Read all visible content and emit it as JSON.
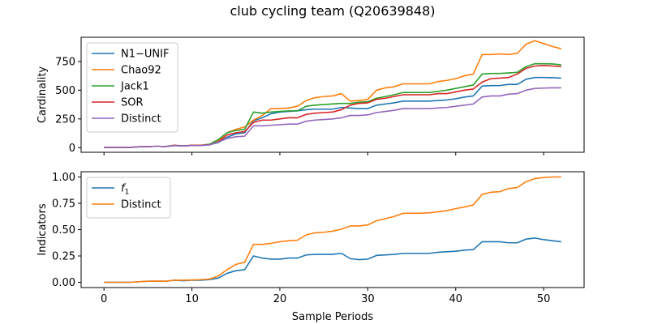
{
  "figure_title": "club cycling team (Q20639848)",
  "chart_data": [
    {
      "type": "line",
      "ylabel": "Cardinality",
      "xlim": [
        -2.6,
        54.6
      ],
      "ylim": [
        -40,
        960
      ],
      "xticks": [
        0,
        10,
        20,
        30,
        40,
        50
      ],
      "yticks": [
        0,
        250,
        500,
        750
      ],
      "ytick_labels": [
        "0",
        "250",
        "500",
        "750"
      ],
      "legend_position": "upper left",
      "x": [
        0,
        1,
        2,
        3,
        4,
        5,
        6,
        7,
        8,
        9,
        10,
        11,
        12,
        13,
        14,
        15,
        16,
        17,
        18,
        19,
        20,
        21,
        22,
        23,
        24,
        25,
        26,
        27,
        28,
        29,
        30,
        31,
        32,
        33,
        34,
        35,
        36,
        37,
        38,
        39,
        40,
        41,
        42,
        43,
        44,
        45,
        46,
        47,
        48,
        49,
        50,
        51,
        52
      ],
      "series": [
        {
          "name": "N1−UNIF",
          "color": "#1f77b4",
          "values": [
            2,
            3,
            3,
            3,
            8,
            10,
            12,
            10,
            18,
            15,
            20,
            20,
            25,
            45,
            90,
            120,
            130,
            235,
            260,
            295,
            310,
            315,
            320,
            330,
            335,
            335,
            335,
            350,
            345,
            340,
            340,
            370,
            380,
            390,
            405,
            405,
            405,
            405,
            410,
            415,
            425,
            440,
            450,
            535,
            540,
            540,
            550,
            550,
            595,
            610,
            610,
            608,
            605
          ]
        },
        {
          "name": "Chao92",
          "color": "#ff7f0e",
          "values": [
            2,
            3,
            3,
            3,
            8,
            10,
            12,
            10,
            20,
            15,
            20,
            20,
            30,
            60,
            130,
            160,
            180,
            240,
            280,
            340,
            340,
            345,
            360,
            410,
            435,
            445,
            450,
            470,
            405,
            410,
            420,
            500,
            520,
            530,
            555,
            555,
            555,
            555,
            575,
            585,
            600,
            625,
            640,
            810,
            810,
            815,
            810,
            820,
            900,
            930,
            905,
            880,
            860
          ]
        },
        {
          "name": "Jack1",
          "color": "#2ca02c",
          "values": [
            2,
            3,
            3,
            3,
            8,
            10,
            12,
            10,
            20,
            15,
            20,
            20,
            30,
            70,
            130,
            150,
            160,
            310,
            300,
            310,
            315,
            320,
            320,
            360,
            370,
            375,
            380,
            385,
            385,
            395,
            400,
            430,
            445,
            460,
            480,
            480,
            480,
            480,
            490,
            500,
            515,
            530,
            545,
            640,
            645,
            645,
            650,
            655,
            705,
            730,
            730,
            728,
            720
          ]
        },
        {
          "name": "SOR",
          "color": "#d62728",
          "values": [
            2,
            3,
            3,
            3,
            8,
            10,
            12,
            10,
            20,
            15,
            20,
            20,
            25,
            50,
            110,
            130,
            140,
            220,
            240,
            240,
            250,
            260,
            260,
            290,
            300,
            305,
            310,
            330,
            370,
            385,
            390,
            420,
            430,
            445,
            460,
            460,
            460,
            460,
            470,
            470,
            485,
            500,
            510,
            570,
            600,
            605,
            610,
            640,
            690,
            710,
            715,
            710,
            705
          ]
        },
        {
          "name": "Distinct",
          "color": "#9467bd",
          "values": [
            2,
            3,
            3,
            3,
            8,
            10,
            12,
            10,
            18,
            15,
            18,
            18,
            25,
            50,
            80,
            95,
            100,
            190,
            190,
            195,
            200,
            205,
            205,
            230,
            240,
            245,
            250,
            260,
            280,
            280,
            285,
            305,
            315,
            325,
            340,
            340,
            340,
            340,
            345,
            350,
            360,
            370,
            380,
            440,
            450,
            450,
            465,
            470,
            500,
            515,
            518,
            520,
            520
          ]
        }
      ]
    },
    {
      "type": "line",
      "ylabel": "Indicators",
      "xlabel": "Sample Periods",
      "xlim": [
        -2.6,
        54.6
      ],
      "ylim": [
        -0.05,
        1.05
      ],
      "xticks": [
        0,
        10,
        20,
        30,
        40,
        50
      ],
      "yticks": [
        0,
        0.25,
        0.5,
        0.75,
        1.0
      ],
      "ytick_labels": [
        "0.00",
        "0.25",
        "0.50",
        "0.75",
        "1.00"
      ],
      "legend_position": "upper left",
      "x": [
        0,
        1,
        2,
        3,
        4,
        5,
        6,
        7,
        8,
        9,
        10,
        11,
        12,
        13,
        14,
        15,
        16,
        17,
        18,
        19,
        20,
        21,
        22,
        23,
        24,
        25,
        26,
        27,
        28,
        29,
        30,
        31,
        32,
        33,
        34,
        35,
        36,
        37,
        38,
        39,
        40,
        41,
        42,
        43,
        44,
        45,
        46,
        47,
        48,
        49,
        50,
        51,
        52
      ],
      "series": [
        {
          "name": "f1",
          "color": "#1f77b4",
          "values": [
            0.0,
            0.0,
            0.0,
            0.0,
            0.005,
            0.01,
            0.01,
            0.01,
            0.02,
            0.015,
            0.02,
            0.02,
            0.025,
            0.04,
            0.085,
            0.11,
            0.12,
            0.25,
            0.23,
            0.22,
            0.22,
            0.23,
            0.23,
            0.26,
            0.265,
            0.265,
            0.265,
            0.275,
            0.225,
            0.215,
            0.22,
            0.255,
            0.26,
            0.265,
            0.275,
            0.275,
            0.275,
            0.275,
            0.285,
            0.29,
            0.295,
            0.305,
            0.31,
            0.385,
            0.385,
            0.385,
            0.375,
            0.375,
            0.41,
            0.42,
            0.405,
            0.395,
            0.385
          ]
        },
        {
          "name": "Distinct",
          "color": "#ff7f0e",
          "values": [
            0.0,
            0.0,
            0.0,
            0.0,
            0.005,
            0.01,
            0.012,
            0.01,
            0.02,
            0.02,
            0.022,
            0.025,
            0.03,
            0.06,
            0.12,
            0.17,
            0.19,
            0.36,
            0.36,
            0.37,
            0.385,
            0.395,
            0.4,
            0.45,
            0.47,
            0.475,
            0.485,
            0.505,
            0.535,
            0.535,
            0.545,
            0.585,
            0.605,
            0.625,
            0.655,
            0.655,
            0.655,
            0.66,
            0.67,
            0.68,
            0.7,
            0.715,
            0.735,
            0.835,
            0.855,
            0.86,
            0.89,
            0.9,
            0.955,
            0.985,
            0.995,
            1.0,
            1.0
          ]
        }
      ]
    }
  ]
}
